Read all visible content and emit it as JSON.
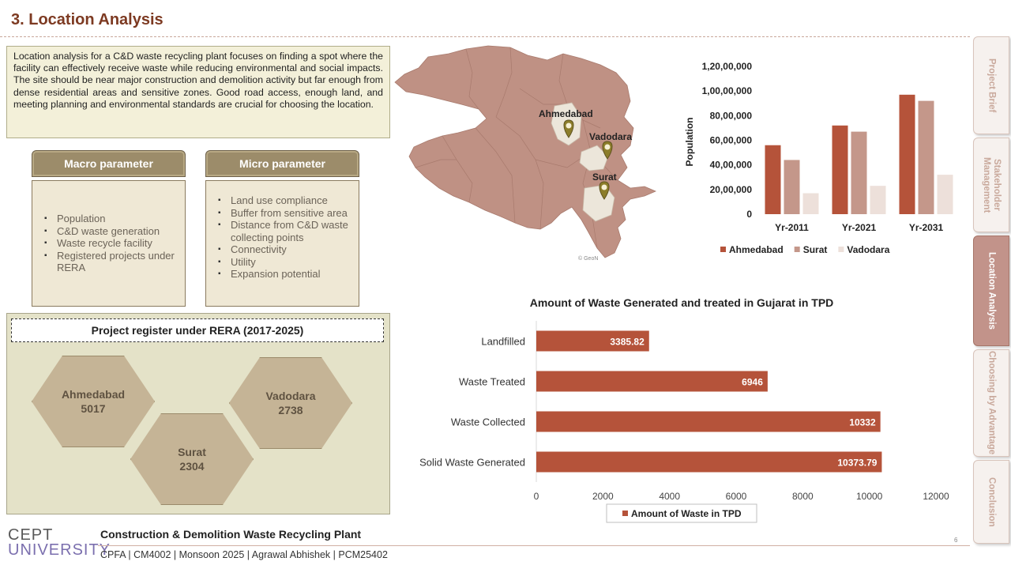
{
  "title": "3.  Location Analysis",
  "intro_text": "Location analysis for a C&D waste recycling plant focuses on finding a spot where the facility can effectively receive waste while reducing environmental and social impacts. The site should be near major construction and demolition activity but far enough from dense residential areas and sensitive zones. Good road access, enough land, and meeting planning and environmental standards are crucial for choosing the location.",
  "macro": {
    "heading": "Macro parameter",
    "items": [
      "Population",
      "C&D waste generation",
      "Waste recycle facility",
      "Registered projects under RERA"
    ]
  },
  "micro": {
    "heading": "Micro parameter",
    "items": [
      "Land use compliance",
      "Buffer from sensitive area",
      "Distance from C&D waste collecting points",
      "Connectivity",
      "Utility",
      "Expansion potential"
    ]
  },
  "rera": {
    "title": "Project register under RERA (2017-2025)",
    "cities": [
      {
        "name": "Ahmedabad",
        "count": "5017"
      },
      {
        "name": "Surat",
        "count": "2304"
      },
      {
        "name": "Vadodara",
        "count": "2738"
      }
    ]
  },
  "map": {
    "labels": [
      "Ahmedabad",
      "Vadodara",
      "Surat"
    ],
    "credit": "© GeoN",
    "colors": {
      "land": "#bf9184",
      "highlight": "#ece6da",
      "pin": "#8c7d2a"
    }
  },
  "chart_data": [
    {
      "type": "bar",
      "title": "",
      "categories": [
        "Yr-2011",
        "Yr-2021",
        "Yr-2031"
      ],
      "series": [
        {
          "name": "Ahmedabad",
          "color": "#b5533a",
          "values": [
            5600000,
            7200000,
            9700000
          ]
        },
        {
          "name": "Surat",
          "color": "#c4978a",
          "values": [
            4400000,
            6700000,
            9200000
          ]
        },
        {
          "name": "Vadodara",
          "color": "#ede0da",
          "values": [
            1700000,
            2300000,
            3200000
          ]
        }
      ],
      "xlabel": "",
      "ylabel": "Population",
      "ylim": [
        0,
        12000000
      ],
      "yticks": [
        0,
        2000000,
        4000000,
        6000000,
        8000000,
        10000000,
        12000000
      ],
      "ytick_labels": [
        "0",
        "20,00,000",
        "40,00,000",
        "60,00,000",
        "80,00,000",
        "1,00,00,000",
        "1,20,00,000"
      ],
      "legend": "bottom"
    },
    {
      "type": "bar",
      "orientation": "horizontal",
      "title": "Amount of Waste Generated and treated in Gujarat in TPD",
      "categories": [
        "Landfilled",
        "Waste Treated",
        "Waste Collected",
        "Solid Waste Generated"
      ],
      "series": [
        {
          "name": "Amount of Waste in TPD",
          "color": "#b5533a",
          "values": [
            3385.82,
            6946,
            10332,
            10373.79
          ]
        }
      ],
      "value_labels": [
        "3385.82",
        "6946",
        "10332",
        "10373.79"
      ],
      "xlim": [
        0,
        12000
      ],
      "xticks": [
        0,
        2000,
        4000,
        6000,
        8000,
        10000,
        12000
      ],
      "legend": "bottom"
    }
  ],
  "sidebar": {
    "tabs": [
      "Project Brief",
      "Stakeholder Management",
      "Location Analysis",
      "Choosing by Advantage",
      "Conclusion"
    ],
    "active": "Location Analysis"
  },
  "footer": {
    "title": "Construction & Demolition Waste Recycling Plant",
    "subtitle": "CPFA | CM4002 | Monsoon 2025 | Agrawal Abhishek | PCM25402",
    "page": "6",
    "logo_top": "CEPT",
    "logo_bottom": "UNIVERSITY"
  }
}
